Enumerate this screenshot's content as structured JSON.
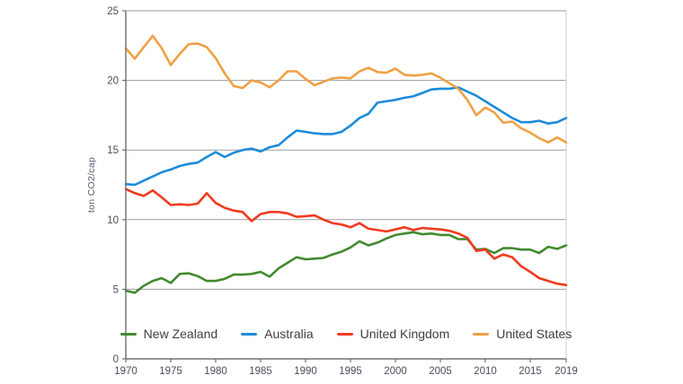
{
  "chart_data": {
    "type": "line",
    "title": "",
    "xlabel": "",
    "ylabel": "ton CO2/cap",
    "xlim": [
      1970,
      2019
    ],
    "ylim": [
      0,
      25
    ],
    "x_ticks": [
      1970,
      1975,
      1980,
      1985,
      1990,
      1995,
      2000,
      2005,
      2010,
      2015,
      2019
    ],
    "y_ticks": [
      0,
      5,
      10,
      15,
      20,
      25
    ],
    "grid": "horizontal",
    "legend_position": "bottom",
    "x": [
      1970,
      1971,
      1972,
      1973,
      1974,
      1975,
      1976,
      1977,
      1978,
      1979,
      1980,
      1981,
      1982,
      1983,
      1984,
      1985,
      1986,
      1987,
      1988,
      1989,
      1990,
      1991,
      1992,
      1993,
      1994,
      1995,
      1996,
      1997,
      1998,
      1999,
      2000,
      2001,
      2002,
      2003,
      2004,
      2005,
      2006,
      2007,
      2008,
      2009,
      2010,
      2011,
      2012,
      2013,
      2014,
      2015,
      2016,
      2017,
      2018,
      2019
    ],
    "series": [
      {
        "name": "New Zealand",
        "color": "#418a2f",
        "values": [
          4.9,
          4.75,
          5.25,
          5.6,
          5.8,
          5.45,
          6.1,
          6.15,
          5.95,
          5.6,
          5.6,
          5.75,
          6.05,
          6.05,
          6.1,
          6.25,
          5.9,
          6.5,
          6.9,
          7.3,
          7.15,
          7.2,
          7.25,
          7.5,
          7.7,
          8.0,
          8.45,
          8.15,
          8.35,
          8.65,
          8.9,
          9.0,
          9.1,
          8.95,
          9.0,
          8.9,
          8.9,
          8.6,
          8.6,
          7.85,
          7.9,
          7.6,
          7.95,
          7.95,
          7.85,
          7.85,
          7.6,
          8.05,
          7.9,
          8.15
        ]
      },
      {
        "name": "Australia",
        "color": "#1d8bdb",
        "values": [
          12.55,
          12.5,
          12.8,
          13.1,
          13.4,
          13.6,
          13.85,
          14.0,
          14.1,
          14.5,
          14.85,
          14.5,
          14.8,
          15.0,
          15.1,
          14.9,
          15.2,
          15.35,
          15.9,
          16.4,
          16.3,
          16.2,
          16.15,
          16.15,
          16.3,
          16.75,
          17.3,
          17.6,
          18.4,
          18.5,
          18.6,
          18.75,
          18.85,
          19.1,
          19.35,
          19.4,
          19.4,
          19.5,
          19.2,
          18.9,
          18.5,
          18.1,
          17.7,
          17.3,
          17.0,
          17.0,
          17.1,
          16.9,
          17.0,
          17.3
        ]
      },
      {
        "name": "United Kingdom",
        "color": "#f03b20",
        "values": [
          12.2,
          11.9,
          11.7,
          12.1,
          11.6,
          11.05,
          11.1,
          11.05,
          11.15,
          11.9,
          11.2,
          10.85,
          10.65,
          10.55,
          9.9,
          10.4,
          10.55,
          10.55,
          10.45,
          10.2,
          10.25,
          10.3,
          10.0,
          9.75,
          9.65,
          9.45,
          9.75,
          9.35,
          9.25,
          9.15,
          9.3,
          9.45,
          9.25,
          9.4,
          9.35,
          9.3,
          9.2,
          9.0,
          8.7,
          7.75,
          7.85,
          7.2,
          7.5,
          7.3,
          6.65,
          6.25,
          5.8,
          5.6,
          5.4,
          5.3
        ]
      },
      {
        "name": "United States",
        "color": "#efa143",
        "values": [
          22.3,
          21.55,
          22.4,
          23.2,
          22.3,
          21.1,
          21.9,
          22.6,
          22.65,
          22.4,
          21.6,
          20.5,
          19.6,
          19.45,
          20.0,
          19.85,
          19.5,
          20.0,
          20.65,
          20.65,
          20.1,
          19.65,
          19.9,
          20.15,
          20.2,
          20.15,
          20.65,
          20.9,
          20.6,
          20.55,
          20.85,
          20.4,
          20.35,
          20.4,
          20.5,
          20.2,
          19.8,
          19.4,
          18.6,
          17.5,
          18.05,
          17.7,
          16.95,
          17.05,
          16.55,
          16.25,
          15.85,
          15.55,
          15.9,
          15.55
        ]
      }
    ],
    "colors": {
      "grid": "#9d9d9d",
      "axis": "#707070",
      "right_spine": "#cccccc",
      "tick_text": "#4c4c5e",
      "legend_text": "#3f3f3f"
    }
  }
}
